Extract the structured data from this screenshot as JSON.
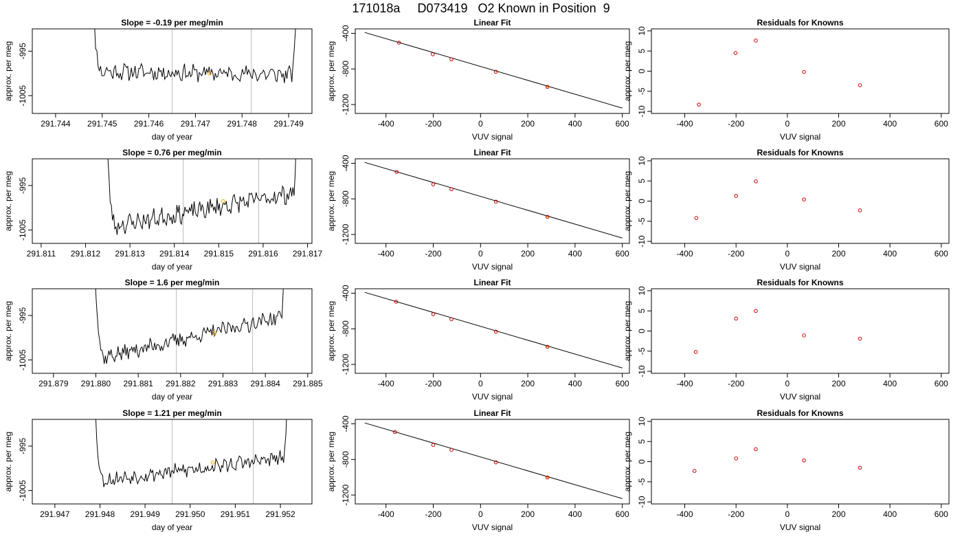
{
  "title": "171018a     D073419   O2 Known in Position  9",
  "colors": {
    "data": "#000000",
    "known_point": "#cc0000",
    "highlight": "#ffa500",
    "guide": "#bbbbbb",
    "fit_line": "#000000"
  },
  "chart_data": [
    {
      "type": "line",
      "row": 1,
      "panel": "time_series",
      "title": "Slope =  -0.19  per meg/min",
      "xlabel": "day of year",
      "ylabel": "approx. per meg",
      "xlim": [
        291.7435,
        291.7495
      ],
      "ylim": [
        -1009,
        -990
      ],
      "xticks": [
        "291.744",
        "291.745",
        "291.746",
        "291.747",
        "291.748",
        "291.749"
      ],
      "xtick_values": [
        291.744,
        291.745,
        291.746,
        291.747,
        291.748,
        291.749
      ],
      "yticks": [
        "-995",
        "-1005"
      ],
      "ytick_values": [
        -995,
        -1005
      ],
      "trace_start": 291.7447,
      "trace_end": 291.7492,
      "baseline_start": -999.5,
      "baseline_end": -1000.3,
      "noise": 1.6,
      "seed": 11,
      "vlines": [
        291.7465,
        291.7482
      ],
      "highlight_point": {
        "x": 291.7473,
        "y": -1000.0
      }
    },
    {
      "type": "scatter",
      "row": 1,
      "panel": "linear_fit",
      "title": "Linear Fit",
      "xlabel": "VUV signal",
      "ylabel": "approx. per meg",
      "xlim": [
        -530,
        630
      ],
      "ylim": [
        -1300,
        -350
      ],
      "xticks": [
        "-400",
        "-200",
        "0",
        "200",
        "400",
        "600"
      ],
      "xtick_values": [
        -400,
        -200,
        0,
        200,
        400,
        600
      ],
      "yticks": [
        "-400",
        "-800",
        "-1200"
      ],
      "ytick_values": [
        -400,
        -800,
        -1200
      ],
      "x": [
        -345,
        -202,
        -123,
        65,
        283
      ],
      "y": [
        -505,
        -635,
        -692,
        -832,
        -1002
      ],
      "highlight_x": 283,
      "fit_line": {
        "x": [
          -490,
          600
        ],
        "y": [
          -390,
          -1240
        ]
      }
    },
    {
      "type": "scatter",
      "row": 1,
      "panel": "residuals",
      "title": "Residuals for Knowns",
      "xlabel": "VUV signal",
      "ylabel": "approx. per meg",
      "xlim": [
        -530,
        630
      ],
      "ylim": [
        -10.5,
        10.5
      ],
      "xticks": [
        "-400",
        "-200",
        "0",
        "200",
        "400",
        "600"
      ],
      "xtick_values": [
        -400,
        -200,
        0,
        200,
        400,
        600
      ],
      "yticks": [
        "10",
        "5",
        "0",
        "-5",
        "-10"
      ],
      "ytick_values": [
        10,
        5,
        0,
        -5,
        -10
      ],
      "x": [
        -345,
        -202,
        -123,
        65,
        283
      ],
      "y": [
        -8.3,
        4.5,
        7.6,
        -0.2,
        -3.5
      ]
    },
    {
      "type": "line",
      "row": 2,
      "panel": "time_series",
      "title": "Slope =  0.76  per meg/min",
      "xlabel": "day of year",
      "ylabel": "approx. per meg",
      "xlim": [
        291.8108,
        291.8171
      ],
      "ylim": [
        -1008,
        -989
      ],
      "xticks": [
        "291.811",
        "291.812",
        "291.813",
        "291.814",
        "291.815",
        "291.816",
        "291.817"
      ],
      "xtick_values": [
        291.811,
        291.812,
        291.813,
        291.814,
        291.815,
        291.816,
        291.817
      ],
      "yticks": [
        "-995",
        "-1005"
      ],
      "ytick_values": [
        -995,
        -1005
      ],
      "trace_start": 291.8124,
      "trace_end": 291.8168,
      "baseline_start": -1004.5,
      "baseline_end": -996.5,
      "noise": 1.8,
      "seed": 23,
      "vlines": [
        291.8142,
        291.8159
      ],
      "highlight_point": {
        "x": 291.8151,
        "y": -998.5
      }
    },
    {
      "type": "scatter",
      "row": 2,
      "panel": "linear_fit",
      "title": "Linear Fit",
      "xlabel": "VUV signal",
      "ylabel": "approx. per meg",
      "xlim": [
        -530,
        630
      ],
      "ylim": [
        -1300,
        -350
      ],
      "xticks": [
        "-400",
        "-200",
        "0",
        "200",
        "400",
        "600"
      ],
      "xtick_values": [
        -400,
        -200,
        0,
        200,
        400,
        600
      ],
      "yticks": [
        "-400",
        "-800",
        "-1200"
      ],
      "ytick_values": [
        -400,
        -800,
        -1200
      ],
      "x": [
        -355,
        -200,
        -123,
        65,
        283
      ],
      "y": [
        -497,
        -637,
        -692,
        -831,
        -1002
      ],
      "highlight_x": 283,
      "fit_line": {
        "x": [
          -490,
          600
        ],
        "y": [
          -390,
          -1240
        ]
      }
    },
    {
      "type": "scatter",
      "row": 2,
      "panel": "residuals",
      "title": "Residuals for Knowns",
      "xlabel": "VUV signal",
      "ylabel": "approx. per meg",
      "xlim": [
        -530,
        630
      ],
      "ylim": [
        -10.5,
        10.5
      ],
      "xticks": [
        "-400",
        "-200",
        "0",
        "200",
        "400",
        "600"
      ],
      "xtick_values": [
        -400,
        -200,
        0,
        200,
        400,
        600
      ],
      "yticks": [
        "10",
        "5",
        "0",
        "-5",
        "-10"
      ],
      "ytick_values": [
        10,
        5,
        0,
        -5,
        -10
      ],
      "x": [
        -355,
        -200,
        -123,
        65,
        283
      ],
      "y": [
        -4.2,
        1.3,
        4.9,
        0.4,
        -2.3
      ]
    },
    {
      "type": "line",
      "row": 3,
      "panel": "time_series",
      "title": "Slope =  1.6  per meg/min",
      "xlabel": "day of year",
      "ylabel": "approx. per meg",
      "xlim": [
        291.8785,
        291.8851
      ],
      "ylim": [
        -1008,
        -989
      ],
      "xticks": [
        "291.879",
        "291.880",
        "291.881",
        "291.882",
        "291.883",
        "291.884",
        "291.885"
      ],
      "xtick_values": [
        291.879,
        291.88,
        291.881,
        291.882,
        291.883,
        291.884,
        291.885
      ],
      "yticks": [
        "-995",
        "-1005"
      ],
      "ytick_values": [
        -995,
        -1005
      ],
      "trace_start": 291.8799,
      "trace_end": 291.8845,
      "baseline_start": -1005.0,
      "baseline_end": -995.0,
      "noise": 1.5,
      "seed": 37,
      "vlines": [
        291.8819,
        291.8837
      ],
      "highlight_point": {
        "x": 291.8828,
        "y": -999.0
      }
    },
    {
      "type": "scatter",
      "row": 3,
      "panel": "linear_fit",
      "title": "Linear Fit",
      "xlabel": "VUV signal",
      "ylabel": "approx. per meg",
      "xlim": [
        -530,
        630
      ],
      "ylim": [
        -1300,
        -350
      ],
      "xticks": [
        "-400",
        "-200",
        "0",
        "200",
        "400",
        "600"
      ],
      "xtick_values": [
        -400,
        -200,
        0,
        200,
        400,
        600
      ],
      "yticks": [
        "-400",
        "-800",
        "-1200"
      ],
      "ytick_values": [
        -400,
        -800,
        -1200
      ],
      "x": [
        -357,
        -200,
        -123,
        65,
        283
      ],
      "y": [
        -496,
        -636,
        -693,
        -832,
        -1002
      ],
      "highlight_x": 283,
      "fit_line": {
        "x": [
          -490,
          600
        ],
        "y": [
          -390,
          -1240
        ]
      }
    },
    {
      "type": "scatter",
      "row": 3,
      "panel": "residuals",
      "title": "Residuals for Knowns",
      "xlabel": "VUV signal",
      "ylabel": "approx. per meg",
      "xlim": [
        -530,
        630
      ],
      "ylim": [
        -10.5,
        10.5
      ],
      "xticks": [
        "-400",
        "-200",
        "0",
        "200",
        "400",
        "600"
      ],
      "xtick_values": [
        -400,
        -200,
        0,
        200,
        400,
        600
      ],
      "yticks": [
        "10",
        "5",
        "0",
        "-5",
        "-10"
      ],
      "ytick_values": [
        10,
        5,
        0,
        -5,
        -10
      ],
      "x": [
        -357,
        -200,
        -123,
        65,
        283
      ],
      "y": [
        -5.2,
        3.1,
        5.0,
        -1.1,
        -1.9
      ]
    },
    {
      "type": "line",
      "row": 4,
      "panel": "time_series",
      "title": "Slope =  1.21  per meg/min",
      "xlabel": "day of year",
      "ylabel": "approx. per meg",
      "xlim": [
        291.9465,
        291.9527
      ],
      "ylim": [
        -1008,
        -989
      ],
      "xticks": [
        "291.947",
        "291.948",
        "291.949",
        "291.950",
        "291.951",
        "291.952"
      ],
      "xtick_values": [
        291.947,
        291.948,
        291.949,
        291.95,
        291.951,
        291.952
      ],
      "yticks": [
        "-995",
        "-1005"
      ],
      "ytick_values": [
        -995,
        -1005
      ],
      "trace_start": 291.9478,
      "trace_end": 291.9522,
      "baseline_start": -1003.0,
      "baseline_end": -997.5,
      "noise": 1.4,
      "seed": 53,
      "vlines": [
        291.9496,
        291.9514
      ],
      "highlight_point": {
        "x": 291.9505,
        "y": -998.7
      }
    },
    {
      "type": "scatter",
      "row": 4,
      "panel": "linear_fit",
      "title": "Linear Fit",
      "xlabel": "VUV signal",
      "ylabel": "approx. per meg",
      "xlim": [
        -530,
        630
      ],
      "ylim": [
        -1300,
        -350
      ],
      "xticks": [
        "-400",
        "-200",
        "0",
        "200",
        "400",
        "600"
      ],
      "xtick_values": [
        -400,
        -200,
        0,
        200,
        400,
        600
      ],
      "yticks": [
        "-400",
        "-800",
        "-1200"
      ],
      "ytick_values": [
        -400,
        -800,
        -1200
      ],
      "x": [
        -362,
        -200,
        -123,
        65,
        283
      ],
      "y": [
        -492,
        -637,
        -693,
        -833,
        -1003
      ],
      "highlight_x": 283,
      "fit_line": {
        "x": [
          -490,
          600
        ],
        "y": [
          -390,
          -1240
        ]
      }
    },
    {
      "type": "scatter",
      "row": 4,
      "panel": "residuals",
      "title": "Residuals for Knowns",
      "xlabel": "VUV signal",
      "ylabel": "approx. per meg",
      "xlim": [
        -530,
        630
      ],
      "ylim": [
        -10.5,
        10.5
      ],
      "xticks": [
        "-400",
        "-200",
        "0",
        "200",
        "400",
        "600"
      ],
      "xtick_values": [
        -400,
        -200,
        0,
        200,
        400,
        600
      ],
      "yticks": [
        "10",
        "5",
        "0",
        "-5",
        "-10"
      ],
      "ytick_values": [
        10,
        5,
        0,
        -5,
        -10
      ],
      "x": [
        -362,
        -200,
        -123,
        65,
        283
      ],
      "y": [
        -2.3,
        0.8,
        3.1,
        0.3,
        -1.5
      ]
    }
  ]
}
